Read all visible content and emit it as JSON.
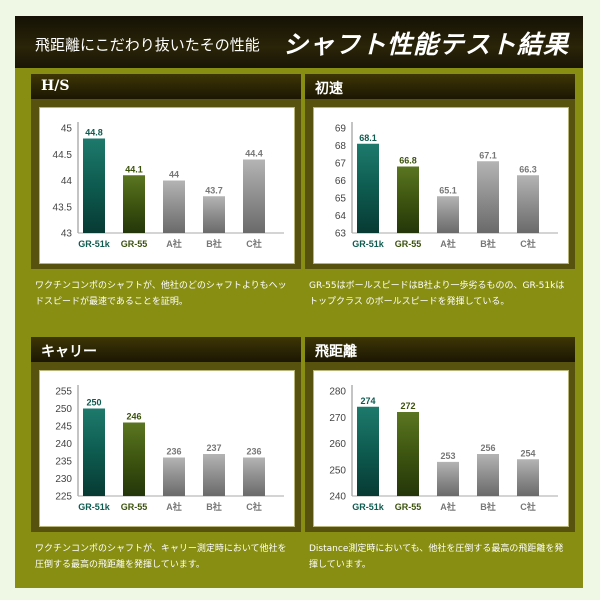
{
  "header": {
    "subtitle": "飛距離にこだわり抜いたその性能",
    "title": "シャフト性能テスト結果"
  },
  "colors": {
    "gr51k": "#0e5b50",
    "gr55": "#3d5510",
    "others": "#8e8e8e",
    "gr51k_label": "#0e5b50",
    "gr55_label": "#3b520d",
    "other_label": "#777777"
  },
  "chart_data": [
    {
      "type": "bar",
      "title": "H/S",
      "categories": [
        "GR-51k",
        "GR-55",
        "A社",
        "B社",
        "C社"
      ],
      "values": [
        44.8,
        44.1,
        44,
        43.7,
        44.4
      ],
      "value_labels": [
        "44.8",
        "44.1",
        "44",
        "43.7",
        "44.4"
      ],
      "yticks": [
        "45",
        "44.5",
        "44",
        "43.5",
        "43"
      ],
      "ylim": [
        43,
        45
      ],
      "grid": false,
      "description": "ワクチンコンポのシャフトが、他社のどのシャフトよりもヘッドスピードが最速であることを証明。"
    },
    {
      "type": "bar",
      "title": "初速",
      "categories": [
        "GR-51k",
        "GR-55",
        "A社",
        "B社",
        "C社"
      ],
      "values": [
        68.1,
        66.8,
        65.1,
        67.1,
        66.3
      ],
      "value_labels": [
        "68.1",
        "66.8",
        "65.1",
        "67.1",
        "66.3"
      ],
      "yticks": [
        "69",
        "68",
        "67",
        "66",
        "65",
        "64",
        "63"
      ],
      "ylim": [
        63,
        69
      ],
      "grid": false,
      "description": "GR-55はボールスピードはB社より一歩劣るものの、GR-51kはトップクラス のボールスピードを発揮している。"
    },
    {
      "type": "bar",
      "title": "キャリー",
      "categories": [
        "GR-51k",
        "GR-55",
        "A社",
        "B社",
        "C社"
      ],
      "values": [
        250,
        246,
        236,
        237,
        236
      ],
      "value_labels": [
        "250",
        "246",
        "236",
        "237",
        "236"
      ],
      "yticks": [
        "255",
        "250",
        "245",
        "240",
        "235",
        "230",
        "225"
      ],
      "ylim": [
        225,
        255
      ],
      "grid": false,
      "description": "ワクチンコンポのシャフトが、キャリー測定時において他社を圧倒する最高の飛距離を発揮しています。"
    },
    {
      "type": "bar",
      "title": "飛距離",
      "categories": [
        "GR-51k",
        "GR-55",
        "A社",
        "B社",
        "C社"
      ],
      "values": [
        274,
        272,
        253,
        256,
        254
      ],
      "value_labels": [
        "274",
        "272",
        "253",
        "256",
        "254"
      ],
      "yticks": [
        "280",
        "270",
        "260",
        "250",
        "240"
      ],
      "ylim": [
        240,
        280
      ],
      "grid": false,
      "description": "Distance測定時においても、他社を圧倒する最高の飛距離を発揮しています。"
    }
  ]
}
